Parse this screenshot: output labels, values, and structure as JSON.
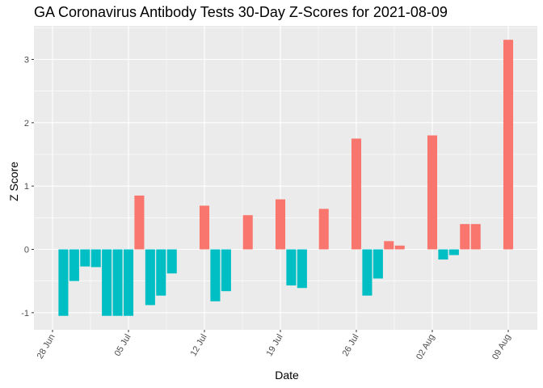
{
  "chart_data": {
    "type": "bar",
    "title": "GA Coronavirus Antibody Tests 30-Day Z-Scores for 2021-08-09",
    "xlabel": "Date",
    "ylabel": "Z Score",
    "ylim": [
      -1.2,
      3.5
    ],
    "yticks": [
      -1,
      0,
      1,
      2,
      3
    ],
    "xticks": [
      "2021-06-28",
      "2021-07-05",
      "2021-07-12",
      "2021-07-19",
      "2021-07-26",
      "2021-08-02",
      "2021-08-09"
    ],
    "xtick_labels": [
      "28 Jun",
      "05 Jul",
      "12 Jul",
      "19 Jul",
      "26 Jul",
      "02 Aug",
      "09 Aug"
    ],
    "x_start": "2021-06-27",
    "positive_color": "#F8766D",
    "negative_color": "#00BFC4",
    "grid": true,
    "points": [
      {
        "date": "2021-06-28",
        "value": null
      },
      {
        "date": "2021-06-29",
        "value": -1.05
      },
      {
        "date": "2021-06-30",
        "value": -0.5
      },
      {
        "date": "2021-07-01",
        "value": -0.27
      },
      {
        "date": "2021-07-02",
        "value": -0.28
      },
      {
        "date": "2021-07-03",
        "value": -1.05
      },
      {
        "date": "2021-07-04",
        "value": -1.05
      },
      {
        "date": "2021-07-05",
        "value": -1.05
      },
      {
        "date": "2021-07-06",
        "value": 0.85
      },
      {
        "date": "2021-07-07",
        "value": -0.88
      },
      {
        "date": "2021-07-08",
        "value": -0.73
      },
      {
        "date": "2021-07-09",
        "value": -0.38
      },
      {
        "date": "2021-07-12",
        "value": 0.69
      },
      {
        "date": "2021-07-13",
        "value": -0.82
      },
      {
        "date": "2021-07-14",
        "value": -0.66
      },
      {
        "date": "2021-07-16",
        "value": 0.54
      },
      {
        "date": "2021-07-19",
        "value": 0.79
      },
      {
        "date": "2021-07-20",
        "value": -0.57
      },
      {
        "date": "2021-07-21",
        "value": -0.61
      },
      {
        "date": "2021-07-23",
        "value": 0.64
      },
      {
        "date": "2021-07-26",
        "value": 1.75
      },
      {
        "date": "2021-07-27",
        "value": -0.73
      },
      {
        "date": "2021-07-28",
        "value": -0.46
      },
      {
        "date": "2021-07-29",
        "value": 0.13
      },
      {
        "date": "2021-07-30",
        "value": 0.06
      },
      {
        "date": "2021-08-02",
        "value": 1.8
      },
      {
        "date": "2021-08-03",
        "value": -0.16
      },
      {
        "date": "2021-08-04",
        "value": -0.09
      },
      {
        "date": "2021-08-05",
        "value": 0.4
      },
      {
        "date": "2021-08-06",
        "value": 0.4
      },
      {
        "date": "2021-08-09",
        "value": 3.31
      }
    ]
  }
}
